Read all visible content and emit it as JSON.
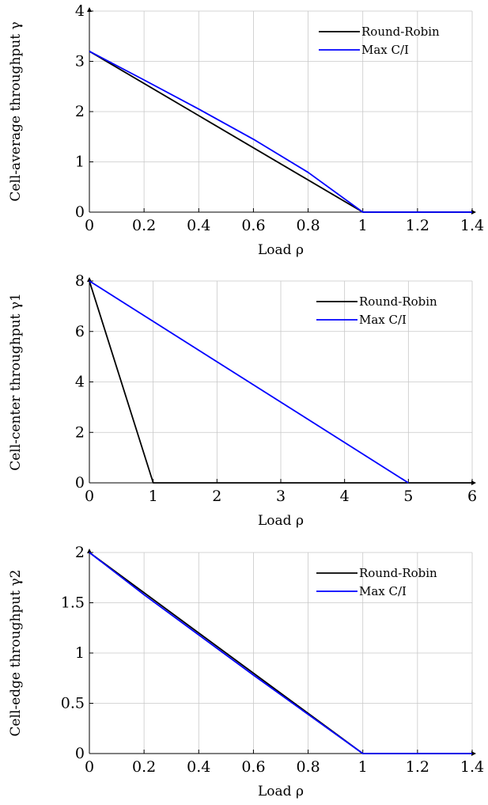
{
  "chart_data": [
    {
      "type": "line",
      "xlabel": "Load ρ",
      "ylabel": "Cell-average throughput γ",
      "xlim": [
        0,
        1.4
      ],
      "ylim": [
        0,
        4
      ],
      "xticks": [
        "0",
        "0.2",
        "0.4",
        "0.6",
        "0.8",
        "1",
        "1.2",
        "1.4"
      ],
      "yticks": [
        "0",
        "1",
        "2",
        "3",
        "4"
      ],
      "grid": true,
      "legend_position": "top-right",
      "series": [
        {
          "name": "Round-Robin",
          "color": "#000000",
          "x": [
            0,
            1,
            1.4
          ],
          "y": [
            3.2,
            0,
            0
          ]
        },
        {
          "name": "Max C/I",
          "color": "#0000ff",
          "x": [
            0,
            0.2,
            0.4,
            0.6,
            0.8,
            1,
            1.4
          ],
          "y": [
            3.2,
            2.63,
            2.05,
            1.45,
            0.79,
            0,
            0
          ]
        }
      ]
    },
    {
      "type": "line",
      "xlabel": "Load ρ",
      "ylabel": "Cell-center throughput γ1",
      "xlim": [
        0,
        6
      ],
      "ylim": [
        0,
        8
      ],
      "xticks": [
        "0",
        "1",
        "2",
        "3",
        "4",
        "5",
        "6"
      ],
      "yticks": [
        "0",
        "2",
        "4",
        "6",
        "8"
      ],
      "grid": true,
      "legend_position": "top-right",
      "series": [
        {
          "name": "Round-Robin",
          "color": "#000000",
          "x": [
            0,
            1,
            6
          ],
          "y": [
            8,
            0,
            0
          ]
        },
        {
          "name": "Max C/I",
          "color": "#0000ff",
          "x": [
            0,
            5
          ],
          "y": [
            8,
            0
          ]
        }
      ]
    },
    {
      "type": "line",
      "xlabel": "Load ρ",
      "ylabel": "Cell-edge throughput γ2",
      "xlim": [
        0,
        1.4
      ],
      "ylim": [
        0,
        2
      ],
      "xticks": [
        "0",
        "0.2",
        "0.4",
        "0.6",
        "0.8",
        "1",
        "1.2",
        "1.4"
      ],
      "yticks": [
        "0",
        "0.5",
        "1",
        "1.5",
        "2"
      ],
      "grid": true,
      "legend_position": "top-right",
      "series": [
        {
          "name": "Round-Robin",
          "color": "#000000",
          "x": [
            0,
            1,
            1.4
          ],
          "y": [
            2,
            0,
            0
          ]
        },
        {
          "name": "Max C/I",
          "color": "#0000ff",
          "x": [
            0,
            0.2,
            0.4,
            0.6,
            0.8,
            1,
            1.4
          ],
          "y": [
            2,
            1.58,
            1.18,
            0.78,
            0.39,
            0,
            0
          ]
        }
      ]
    }
  ]
}
